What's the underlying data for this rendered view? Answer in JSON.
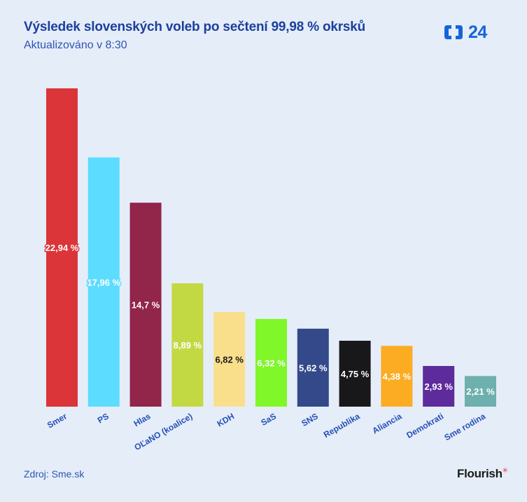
{
  "header": {
    "title": "Výsledek slovenských voleb po sečtení 99,98 % okrsků",
    "subtitle": "Aktualizováno v 8:30"
  },
  "logo": {
    "text": "24",
    "icon": "ct24-logo-icon",
    "color": "#1565d8"
  },
  "footer": {
    "source": "Zdroj: Sme.sk",
    "brand": "Flourish",
    "brand_mark": "✳"
  },
  "chart_data": {
    "type": "bar",
    "title": "Výsledek slovenských voleb po sečtení 99,98 % okrsků",
    "xlabel": "",
    "ylabel": "",
    "ylim": [
      0,
      22.94
    ],
    "grid": false,
    "categories": [
      "Smer",
      "PS",
      "Hlas",
      "OĽaNO (koalice)",
      "KDH",
      "SaS",
      "SNS",
      "Republika",
      "Aliancia",
      "Demokrati",
      "Sme rodina"
    ],
    "values": [
      22.94,
      17.96,
      14.7,
      8.89,
      6.82,
      6.32,
      5.62,
      4.75,
      4.38,
      2.93,
      2.21
    ],
    "value_labels": [
      "22,94 %",
      "17,96 %",
      "14,7 %",
      "8,89 %",
      "6,82 %",
      "6,32 %",
      "5,62 %",
      "4,75 %",
      "4,38 %",
      "2,93 %",
      "2,21 %"
    ],
    "colors": [
      "#db3539",
      "#5cdcff",
      "#92254a",
      "#c3d944",
      "#f9df8c",
      "#7ff729",
      "#334989",
      "#18181a",
      "#fcac22",
      "#5e2b9c",
      "#6eb0ad"
    ],
    "label_colors": [
      "#ffffff",
      "#ffffff",
      "#ffffff",
      "#ffffff",
      "#1a1a1a",
      "#ffffff",
      "#ffffff",
      "#ffffff",
      "#ffffff",
      "#ffffff",
      "#ffffff"
    ],
    "label_outline": [
      "#db3539",
      "#5cdcff",
      "#92254a",
      "#c3d944",
      "#f9df8c",
      "#7ff729",
      "#334989",
      "#18181a",
      "#fcac22",
      "#5e2b9c",
      "#6eb0ad"
    ]
  }
}
